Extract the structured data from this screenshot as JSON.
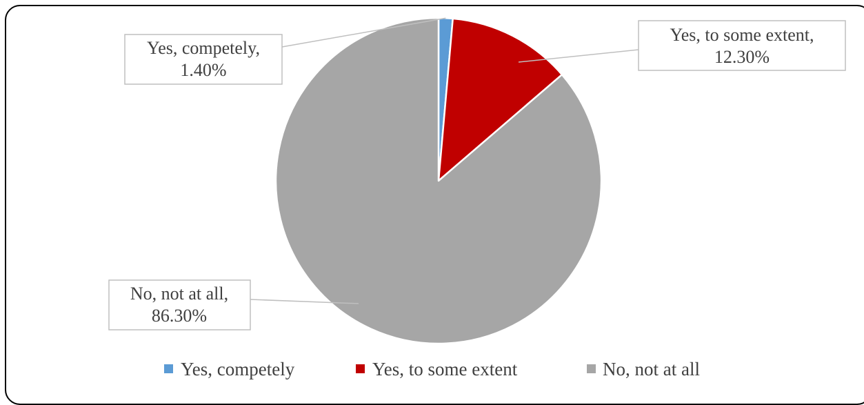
{
  "chart_data": {
    "type": "pie",
    "title": "",
    "categories": [
      "Yes, competely",
      "Yes, to some extent",
      "No, not at all"
    ],
    "values": [
      1.4,
      12.3,
      86.3
    ],
    "unit": "%",
    "colors": [
      "#5b9bd5",
      "#c00000",
      "#a6a6a6"
    ],
    "data_labels": [
      {
        "line1": "Yes, competely,",
        "line2": "1.40%"
      },
      {
        "line1": "Yes, to some extent,",
        "line2": "12.30%"
      },
      {
        "line1": "No, not at all,",
        "line2": "86.30%"
      }
    ],
    "legend": {
      "position": "bottom",
      "entries": [
        "Yes, competely",
        "Yes, to some extent",
        "No, not at all"
      ]
    }
  }
}
